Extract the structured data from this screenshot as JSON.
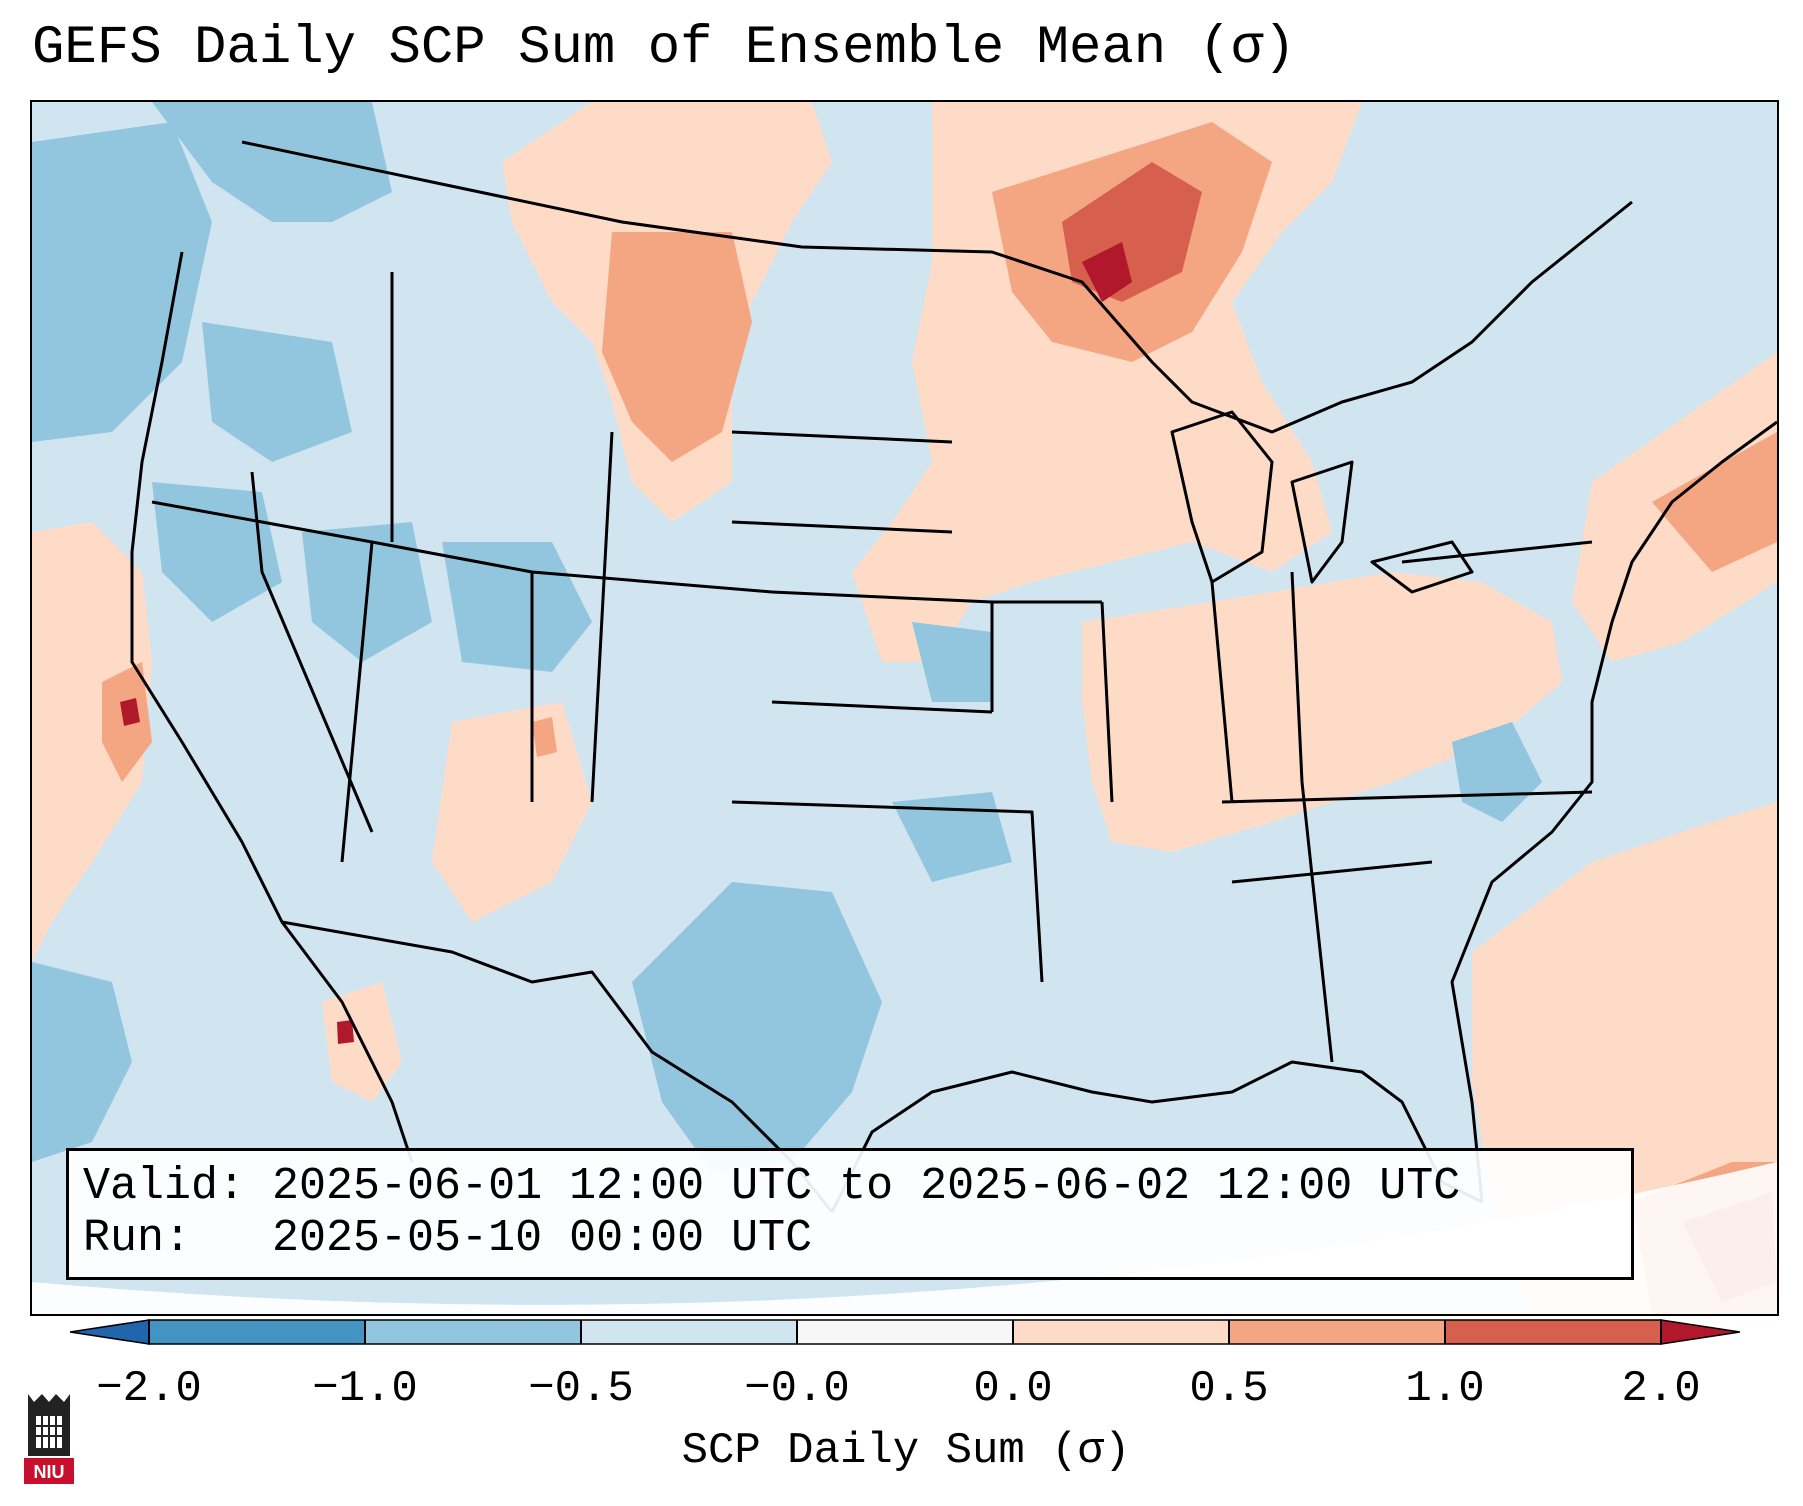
{
  "title": "GEFS Daily SCP Sum of Ensemble Mean (σ)",
  "info": {
    "valid_line": "Valid: 2025-06-01 12:00 UTC to 2025-06-02 12:00 UTC",
    "run_line": "Run:   2025-05-10 00:00 UTC"
  },
  "colorbar": {
    "label": "SCP Daily Sum (σ)",
    "ticks": [
      "−2.0",
      "−1.0",
      "−0.5",
      "−0.0",
      "0.0",
      "0.5",
      "1.0",
      "2.0"
    ],
    "colors": {
      "below": "#2166ac",
      "neg_2_to_1": "#4393c3",
      "neg_1_to_05": "#92c5de",
      "neg_05_to_0": "#d1e5f0",
      "zero_band": "#f7f7f7",
      "pos_0_to_05": "#fddbc7",
      "pos_05_to_1": "#f4a582",
      "pos_1_to_2": "#d6604d",
      "above": "#b2182b"
    }
  },
  "logo": {
    "text": "NIU"
  }
}
